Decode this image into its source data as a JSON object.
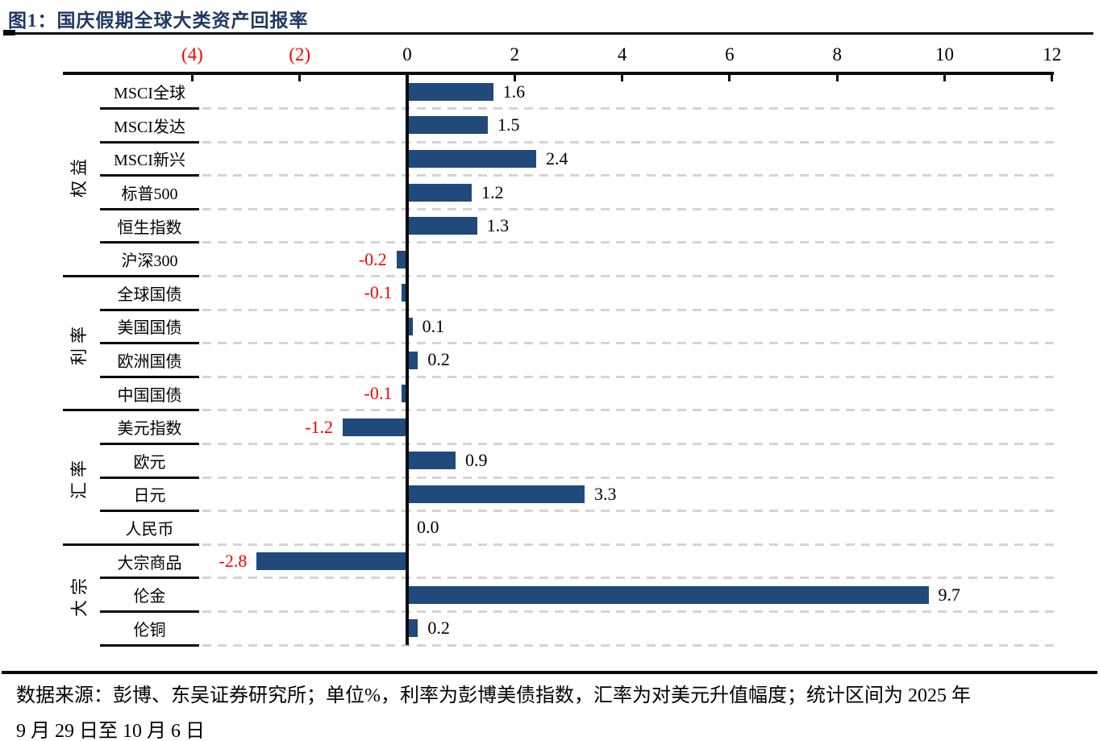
{
  "title": "图1：国庆假期全球大类资产回报率",
  "footer": {
    "line1": "数据来源：彭博、东吴证券研究所；单位%，利率为彭博美债指数，汇率为对美元升值幅度；统计区间为 2025 年",
    "line2": "9 月 29 日至 10 月 6 日"
  },
  "colors": {
    "bar": "#1F4A7B",
    "negative": "#FE0000",
    "title": "#1F3864",
    "line": "#0A0A0A",
    "dash": "#D4D4D4",
    "text": "#000000"
  },
  "chart_data": {
    "type": "bar",
    "orientation": "horizontal",
    "title": "图1：国庆假期全球大类资产回报率",
    "unit": "%",
    "xlim": [
      -4,
      12
    ],
    "grid": "dashed-row-separators",
    "negative_style": "red labels, ticks in parentheses",
    "x_ticks": [
      {
        "value": -4,
        "label": "(4)"
      },
      {
        "value": -2,
        "label": "(2)"
      },
      {
        "value": 0,
        "label": "0"
      },
      {
        "value": 2,
        "label": "2"
      },
      {
        "value": 4,
        "label": "4"
      },
      {
        "value": 6,
        "label": "6"
      },
      {
        "value": 8,
        "label": "8"
      },
      {
        "value": 10,
        "label": "10"
      },
      {
        "value": 12,
        "label": "12"
      }
    ],
    "groups": [
      {
        "label": "权益",
        "items": [
          {
            "label": "MSCI全球",
            "value": 1.6
          },
          {
            "label": "MSCI发达",
            "value": 1.5
          },
          {
            "label": "MSCI新兴",
            "value": 2.4
          },
          {
            "label": "标普500",
            "value": 1.2
          },
          {
            "label": "恒生指数",
            "value": 1.3
          },
          {
            "label": "沪深300",
            "value": -0.2
          }
        ]
      },
      {
        "label": "利率",
        "items": [
          {
            "label": "全球国债",
            "value": -0.1
          },
          {
            "label": "美国国债",
            "value": 0.1
          },
          {
            "label": "欧洲国债",
            "value": 0.2
          },
          {
            "label": "中国国债",
            "value": -0.1
          }
        ]
      },
      {
        "label": "汇率",
        "items": [
          {
            "label": "美元指数",
            "value": -1.2
          },
          {
            "label": "欧元",
            "value": 0.9
          },
          {
            "label": "日元",
            "value": 3.3
          },
          {
            "label": "人民币",
            "value": 0.0
          }
        ]
      },
      {
        "label": "大宗",
        "items": [
          {
            "label": "大宗商品",
            "value": -2.8
          },
          {
            "label": "伦金",
            "value": 9.7
          },
          {
            "label": "伦铜",
            "value": 0.2
          }
        ]
      }
    ]
  }
}
